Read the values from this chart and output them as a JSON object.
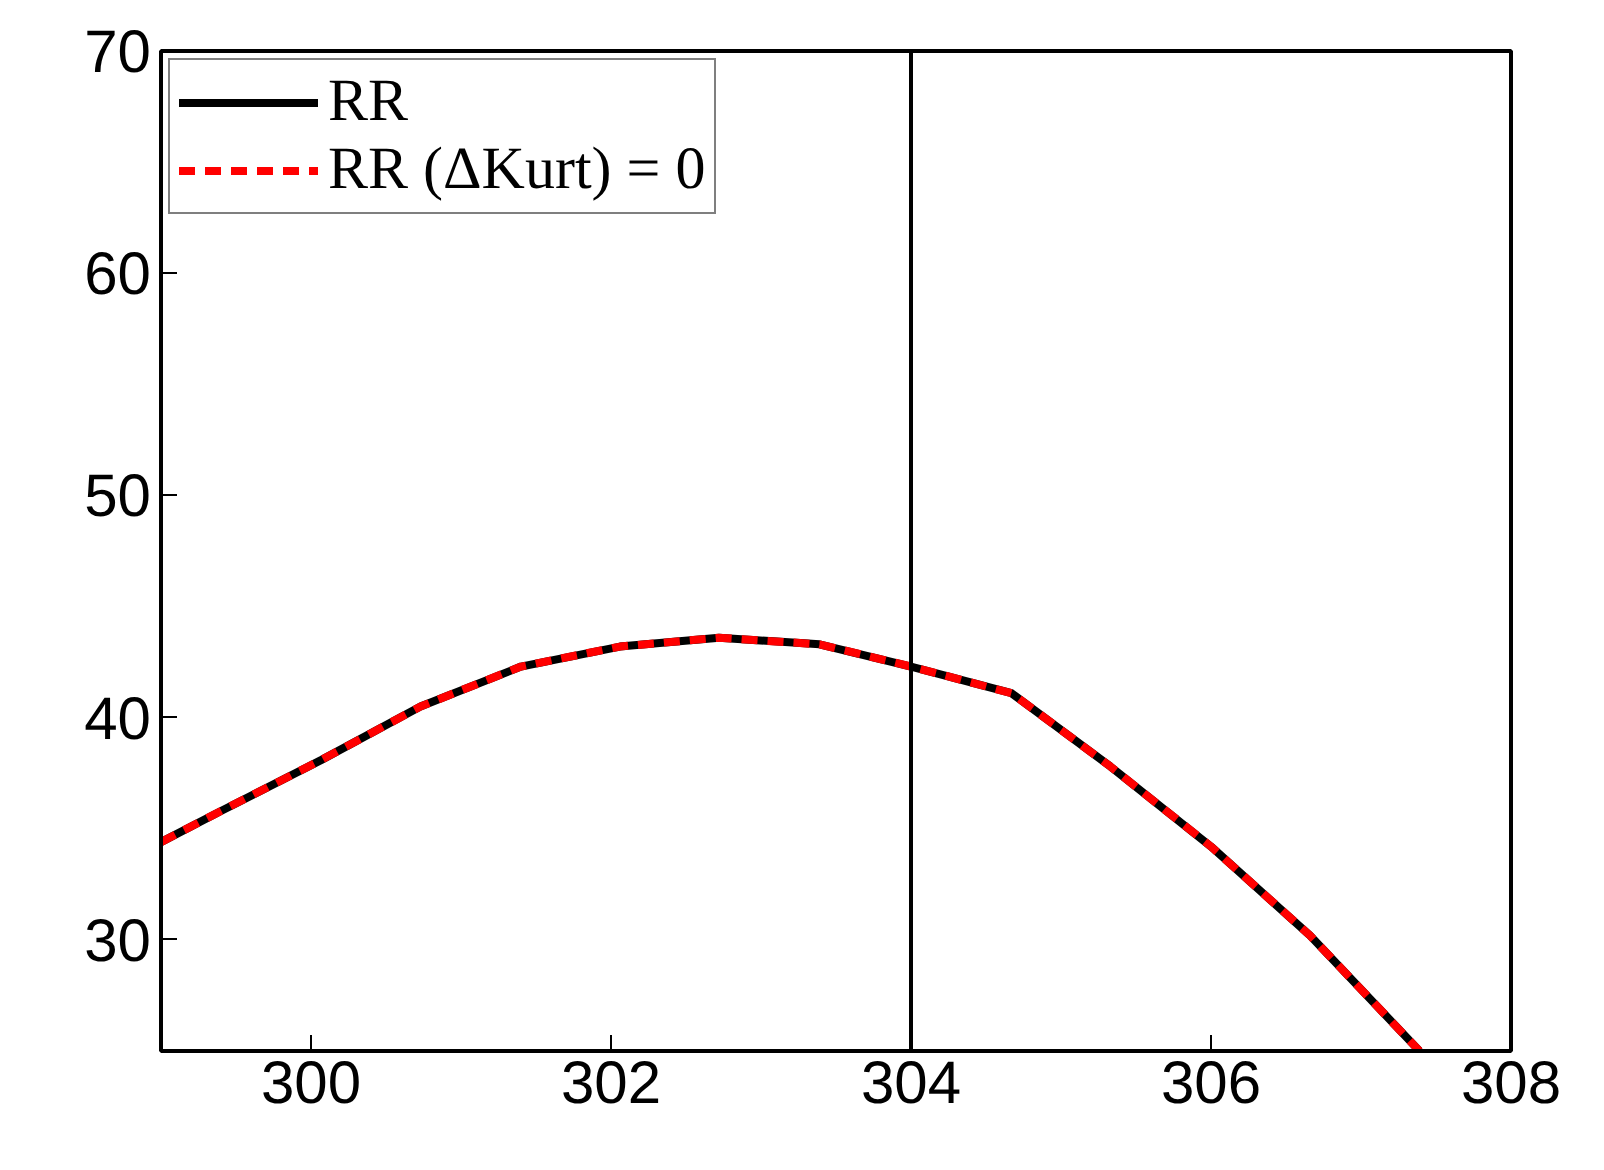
{
  "chart_data": {
    "type": "line",
    "xlim": [
      299,
      308
    ],
    "ylim": [
      25,
      70
    ],
    "xticks": [
      300,
      302,
      304,
      306,
      308
    ],
    "yticks": [
      30,
      40,
      50,
      60,
      70
    ],
    "grid": false,
    "legend": "top left",
    "x": [
      299.0,
      299.4,
      300.07,
      300.73,
      301.4,
      302.06,
      302.72,
      303.39,
      304.0,
      304.67,
      305.33,
      306.0,
      306.66,
      307.39
    ],
    "series": [
      {
        "name": "RR",
        "color": "#000000",
        "line_style": "solid",
        "values": [
          34.4,
          35.8,
          38.1,
          40.5,
          42.3,
          43.2,
          43.6,
          43.3,
          42.3,
          41.1,
          37.8,
          34.2,
          30.2,
          25.0
        ]
      },
      {
        "name": "RR (ΔKurt) = 0",
        "color": "#ff0000",
        "line_style": "dashed",
        "values": [
          34.4,
          35.8,
          38.1,
          40.5,
          42.3,
          43.2,
          43.6,
          43.3,
          42.3,
          41.1,
          37.8,
          34.2,
          30.2,
          25.0
        ]
      }
    ],
    "ref_lines": [
      {
        "axis": "x",
        "value": 304,
        "color": "#000000"
      }
    ]
  }
}
